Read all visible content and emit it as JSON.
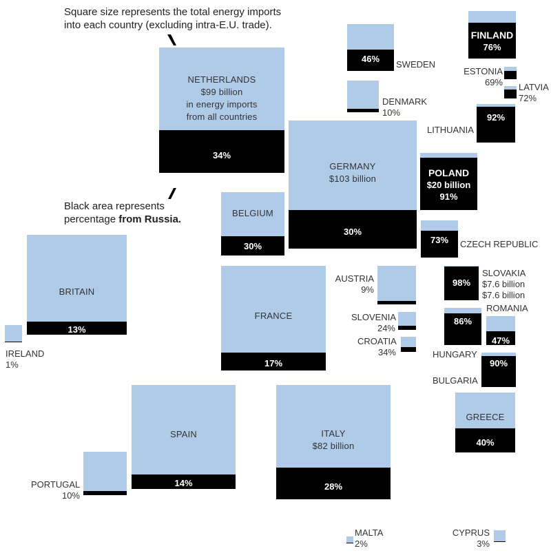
{
  "notes": {
    "top_line1": "Square size represents the total energy imports",
    "top_line2": "into each country (excluding intra-E.U. trade).",
    "bottom_line1": "Black area represents",
    "bottom_line2_a": "percentage ",
    "bottom_line2_b": "from Russia."
  },
  "chart_data": {
    "type": "proportional-squares",
    "encoding": "Square size = total energy imports (excluding intra-E.U. trade); black area = percentage from Russia",
    "countries": [
      {
        "name": "NETHERLANDS",
        "russia_pct": 34,
        "total_label": "$99 billion",
        "extra_label_1": "in energy imports",
        "extra_label_2": "from all countries",
        "total_billion": 99
      },
      {
        "name": "GERMANY",
        "russia_pct": 30,
        "total_label": "$103 billion",
        "total_billion": 103
      },
      {
        "name": "ITALY",
        "russia_pct": 28,
        "total_label": "$82 billion",
        "total_billion": 82
      },
      {
        "name": "POLAND",
        "russia_pct": 91,
        "total_label": "$20 billion",
        "total_billion": 20
      },
      {
        "name": "SLOVAKIA",
        "russia_pct": 98,
        "total_label": "$7.6 billion",
        "total_billion": 7.6
      },
      {
        "name": "FRANCE",
        "russia_pct": 17
      },
      {
        "name": "BRITAIN",
        "russia_pct": 13
      },
      {
        "name": "SPAIN",
        "russia_pct": 14
      },
      {
        "name": "BELGIUM",
        "russia_pct": 30
      },
      {
        "name": "GREECE",
        "russia_pct": 40
      },
      {
        "name": "FINLAND",
        "russia_pct": 76
      },
      {
        "name": "SWEDEN",
        "russia_pct": 46
      },
      {
        "name": "DENMARK",
        "russia_pct": 10
      },
      {
        "name": "ESTONIA",
        "russia_pct": 69
      },
      {
        "name": "LATVIA",
        "russia_pct": 72
      },
      {
        "name": "LITHUANIA",
        "russia_pct": 92
      },
      {
        "name": "CZECH REPUBLIC",
        "russia_pct": 73
      },
      {
        "name": "AUSTRIA",
        "russia_pct": 9
      },
      {
        "name": "SLOVENIA",
        "russia_pct": 24
      },
      {
        "name": "CROATIA",
        "russia_pct": 34
      },
      {
        "name": "ROMANIA",
        "russia_pct": 47
      },
      {
        "name": "HUNGARY",
        "russia_pct": 86
      },
      {
        "name": "BULGARIA",
        "russia_pct": 90
      },
      {
        "name": "IRELAND",
        "russia_pct": 1
      },
      {
        "name": "PORTUGAL",
        "russia_pct": 10
      },
      {
        "name": "MALTA",
        "russia_pct": 2
      },
      {
        "name": "CYPRUS",
        "russia_pct": 3
      }
    ],
    "colors": {
      "square": "#b0cbe8",
      "russia": "#000000"
    }
  }
}
